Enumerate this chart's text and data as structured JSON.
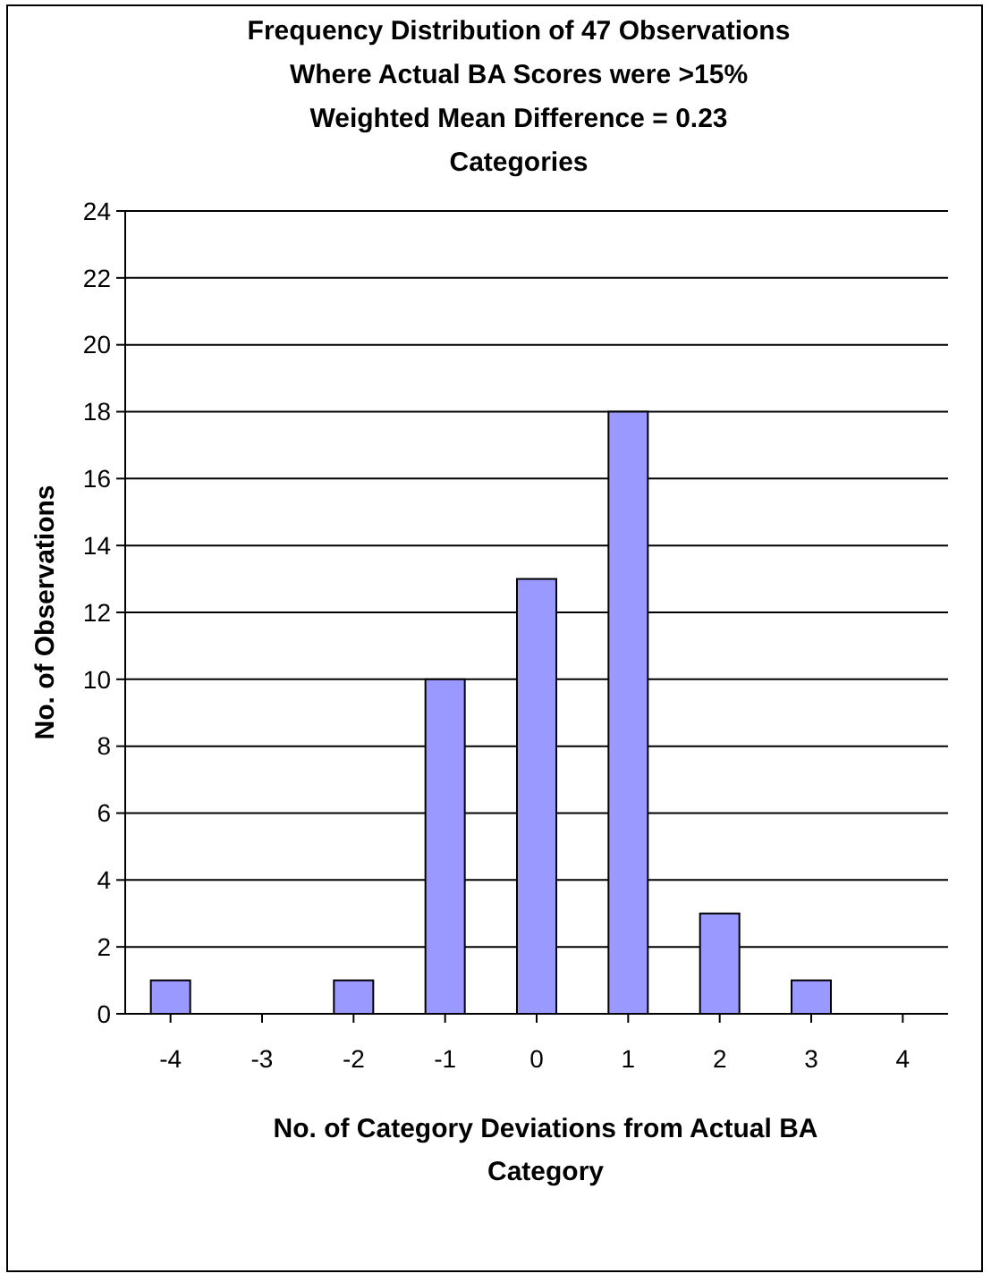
{
  "chart_data": {
    "type": "bar",
    "title": "Frequency Distribution of 47 Observations\nWhere Actual BA Scores were >15%\nWeighted Mean Difference = 0.23\nCategories",
    "xlabel": "No. of Category Deviations from Actual BA\nCategory",
    "ylabel": "No. of Observations",
    "categories": [
      "-4",
      "-3",
      "-2",
      "-1",
      "0",
      "1",
      "2",
      "3",
      "4"
    ],
    "values": [
      1,
      0,
      1,
      10,
      13,
      18,
      3,
      1,
      0
    ],
    "color": "#9999ff",
    "ylim": [
      0,
      24
    ],
    "yticks": [
      0,
      2,
      4,
      6,
      8,
      10,
      12,
      14,
      16,
      18,
      20,
      22,
      24
    ],
    "grid": "y"
  }
}
